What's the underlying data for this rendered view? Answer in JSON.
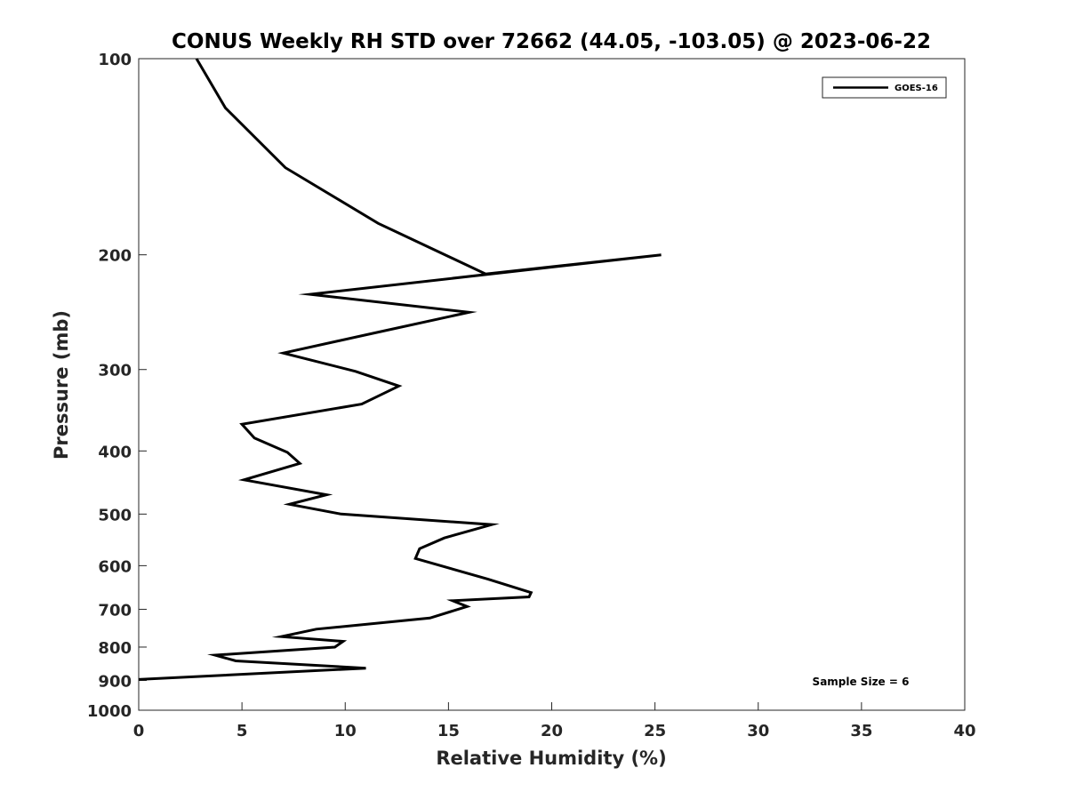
{
  "chart_data": {
    "type": "line",
    "title": "CONUS Weekly RH STD over 72662 (44.05, -103.05) @ 2023-06-22",
    "xlabel": "Relative Humidity (%)",
    "ylabel": "Pressure (mb)",
    "xlim": [
      0,
      40
    ],
    "ylim": [
      100,
      1000
    ],
    "yscale": "log-reversed",
    "xticks": [
      "0",
      "5",
      "10",
      "15",
      "20",
      "25",
      "30",
      "35",
      "40"
    ],
    "yticks": [
      "100",
      "200",
      "300",
      "400",
      "500",
      "600",
      "700",
      "800",
      "900",
      "1000"
    ],
    "grid": false,
    "legend_position": "top-right",
    "annotation": "Sample Size = 6",
    "series": [
      {
        "name": "GOES-16",
        "color": "#000000",
        "points": [
          [
            2.8,
            100
          ],
          [
            4.2,
            119
          ],
          [
            7.1,
            147
          ],
          [
            11.6,
            179
          ],
          [
            16.8,
            214
          ],
          [
            25.3,
            200
          ],
          [
            8.3,
            230
          ],
          [
            16.0,
            245
          ],
          [
            11.8,
            262
          ],
          [
            7.0,
            283
          ],
          [
            10.5,
            302
          ],
          [
            12.6,
            318
          ],
          [
            10.8,
            339
          ],
          [
            5.0,
            364
          ],
          [
            5.6,
            382
          ],
          [
            7.2,
            402
          ],
          [
            7.8,
            418
          ],
          [
            5.1,
            443
          ],
          [
            9.1,
            467
          ],
          [
            7.3,
            483
          ],
          [
            9.8,
            500
          ],
          [
            17.1,
            519
          ],
          [
            14.8,
            544
          ],
          [
            13.6,
            565
          ],
          [
            13.4,
            585
          ],
          [
            16.9,
            629
          ],
          [
            19.0,
            660
          ],
          [
            18.9,
            670
          ],
          [
            15.2,
            679
          ],
          [
            15.9,
            693
          ],
          [
            14.1,
            722
          ],
          [
            8.6,
            751
          ],
          [
            6.9,
            771
          ],
          [
            9.9,
            784
          ],
          [
            9.5,
            800
          ],
          [
            3.7,
            823
          ],
          [
            4.7,
            840
          ],
          [
            11.0,
            862
          ],
          [
            0,
            897
          ]
        ]
      }
    ]
  }
}
